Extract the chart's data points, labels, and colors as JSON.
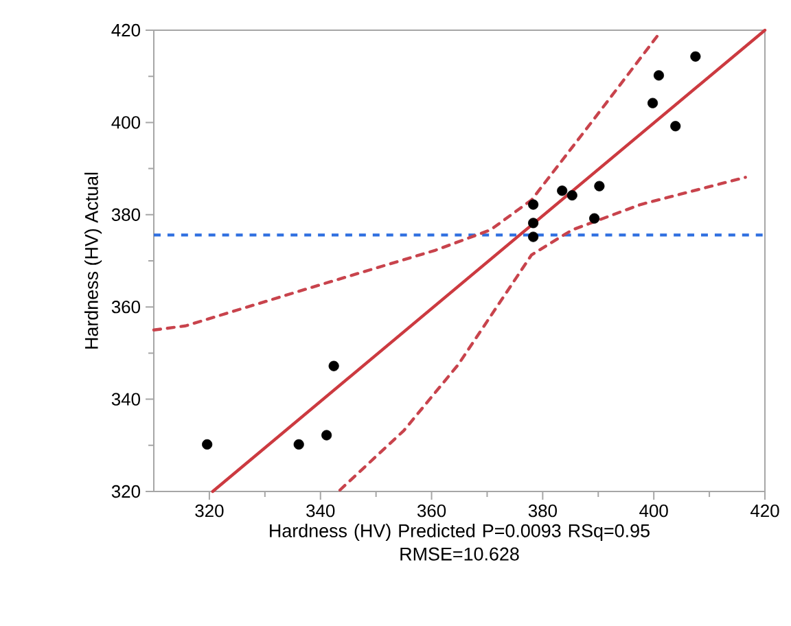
{
  "chart_data": {
    "type": "scatter",
    "xlabel": "Hardness (HV) Predicted P=0.0093 RSq=0.95 RMSE=10.628",
    "ylabel": "Hardness (HV) Actual",
    "xlim": [
      310,
      420
    ],
    "ylim": [
      320,
      420
    ],
    "xticks": [
      320,
      340,
      360,
      380,
      400,
      420
    ],
    "yticks": [
      320,
      340,
      360,
      380,
      400,
      420
    ],
    "grid": false,
    "ref_lines": [
      {
        "axis": "y",
        "value": 375.6,
        "color": "#2f6fe0",
        "line_style": "dashed"
      }
    ],
    "series": [
      {
        "type": "line",
        "color": "#cc3a40",
        "line_style": "solid",
        "marker": "none",
        "x": [
          320.6,
          420
        ],
        "values": [
          320,
          420
        ]
      },
      {
        "type": "line",
        "color": "#c8434c",
        "line_style": "dashed",
        "marker": "none",
        "x": [
          310,
          315.7,
          340.2,
          360.7,
          370.6,
          378,
          389.4,
          401.3
        ],
        "values": [
          355,
          355.9,
          364.9,
          372.3,
          376.7,
          383.2,
          401,
          419.8
        ]
      },
      {
        "type": "line",
        "color": "#c8434c",
        "line_style": "dashed",
        "marker": "none",
        "x": [
          343.5,
          355,
          364.8,
          378,
          385.3,
          397.6,
          416.5
        ],
        "values": [
          320.3,
          333.2,
          347.5,
          371.3,
          376.7,
          382.2,
          388.1
        ]
      },
      {
        "color": "#000000",
        "marker": "circle",
        "x": [
          319.6,
          336.1,
          341.1,
          342.4,
          378.3,
          378.3,
          378.3,
          383.5,
          385.3,
          390.2,
          389.3,
          399.8,
          400.9,
          403.9,
          407.5
        ],
        "values": [
          330.2,
          330.2,
          332.2,
          347.2,
          382.2,
          378.2,
          375.2,
          385.2,
          384.2,
          386.2,
          379.2,
          404.2,
          410.2,
          399.2,
          414.3
        ]
      }
    ]
  }
}
